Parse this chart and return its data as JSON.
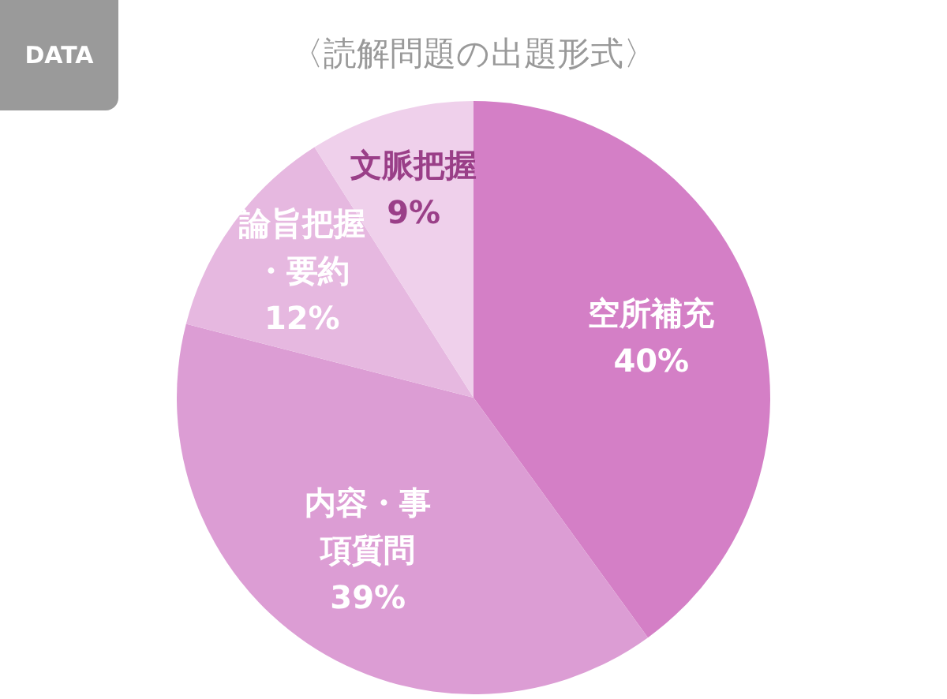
{
  "chart_data": {
    "type": "pie",
    "title": "〈読解問題の出題形式〉",
    "annotations": [
      "DATA"
    ],
    "categories": [
      "空所補充",
      "内容・事項質問",
      "論旨把握・要約",
      "文脈把握"
    ],
    "values": [
      40,
      39,
      12,
      9
    ],
    "value_labels": [
      "40%",
      "39%",
      "12%",
      "9%"
    ],
    "colors": [
      "#d47fc6",
      "#dc9dd4",
      "#e6b8e0",
      "#efd0eb"
    ],
    "legend": false
  }
}
